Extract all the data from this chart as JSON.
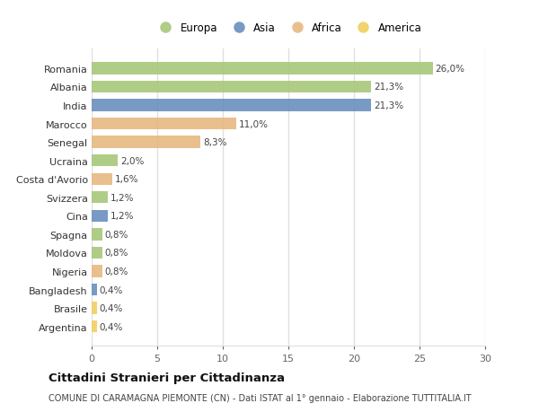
{
  "countries": [
    "Romania",
    "Albania",
    "India",
    "Marocco",
    "Senegal",
    "Ucraina",
    "Costa d'Avorio",
    "Svizzera",
    "Cina",
    "Spagna",
    "Moldova",
    "Nigeria",
    "Bangladesh",
    "Brasile",
    "Argentina"
  ],
  "values": [
    26.0,
    21.3,
    21.3,
    11.0,
    8.3,
    2.0,
    1.6,
    1.2,
    1.2,
    0.8,
    0.8,
    0.8,
    0.4,
    0.4,
    0.4
  ],
  "labels": [
    "26,0%",
    "21,3%",
    "21,3%",
    "11,0%",
    "8,3%",
    "2,0%",
    "1,6%",
    "1,2%",
    "1,2%",
    "0,8%",
    "0,8%",
    "0,8%",
    "0,4%",
    "0,4%",
    "0,4%"
  ],
  "categories": [
    "Europa",
    "Asia",
    "Africa",
    "America"
  ],
  "continents": [
    "Europa",
    "Europa",
    "Asia",
    "Africa",
    "Africa",
    "Europa",
    "Africa",
    "Europa",
    "Asia",
    "Europa",
    "Europa",
    "Africa",
    "Asia",
    "America",
    "America"
  ],
  "colors": {
    "Europa": "#a8c87a",
    "Asia": "#6b8fbe",
    "Africa": "#e8b882",
    "America": "#f0d060"
  },
  "background_color": "#ffffff",
  "plot_bg_color": "#ffffff",
  "grid_color": "#e0e0e0",
  "title": "Cittadini Stranieri per Cittadinanza",
  "subtitle": "COMUNE DI CARAMAGNA PIEMONTE (CN) - Dati ISTAT al 1° gennaio - Elaborazione TUTTITALIA.IT",
  "xlim": [
    0,
    30
  ],
  "xticks": [
    0,
    5,
    10,
    15,
    20,
    25,
    30
  ]
}
